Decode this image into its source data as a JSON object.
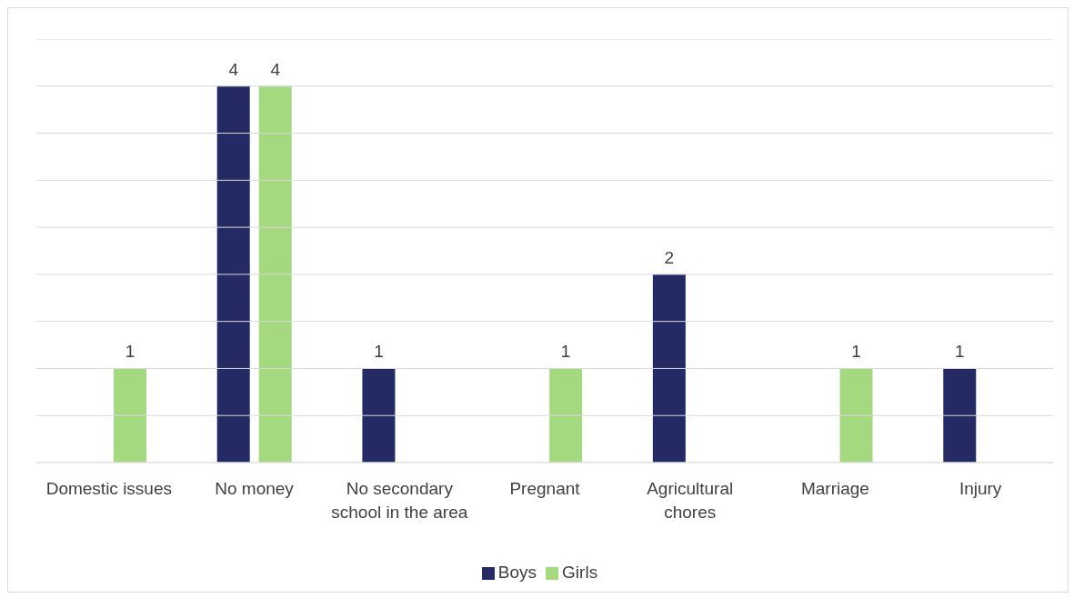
{
  "chart_data": {
    "type": "bar",
    "categories": [
      "Domestic issues",
      "No money",
      "No secondary school in the area",
      "Pregnant",
      "Agricultural chores",
      "Marriage",
      "Injury"
    ],
    "series": [
      {
        "name": "Boys",
        "color": "#242a64",
        "values": [
          null,
          4,
          1,
          null,
          2,
          null,
          1
        ]
      },
      {
        "name": "Girls",
        "color": "#a5d97f",
        "values": [
          1,
          4,
          null,
          1,
          null,
          1,
          null
        ]
      }
    ],
    "ylim": [
      0,
      4.5
    ],
    "yticks": [
      {
        "value": 0,
        "label": null
      },
      {
        "value": 0.5,
        "label": null
      },
      {
        "value": 1,
        "label": null
      },
      {
        "value": 1.5,
        "label": null
      },
      {
        "value": 2,
        "label": null
      },
      {
        "value": 2.5,
        "label": null
      },
      {
        "value": 3,
        "label": null
      },
      {
        "value": 3.5,
        "label": null
      },
      {
        "value": 4,
        "label": null
      },
      {
        "value": 4.5,
        "label": null
      }
    ],
    "grid": "y",
    "legend": "bottom",
    "tick_labels": "x",
    "data_labels": true
  }
}
